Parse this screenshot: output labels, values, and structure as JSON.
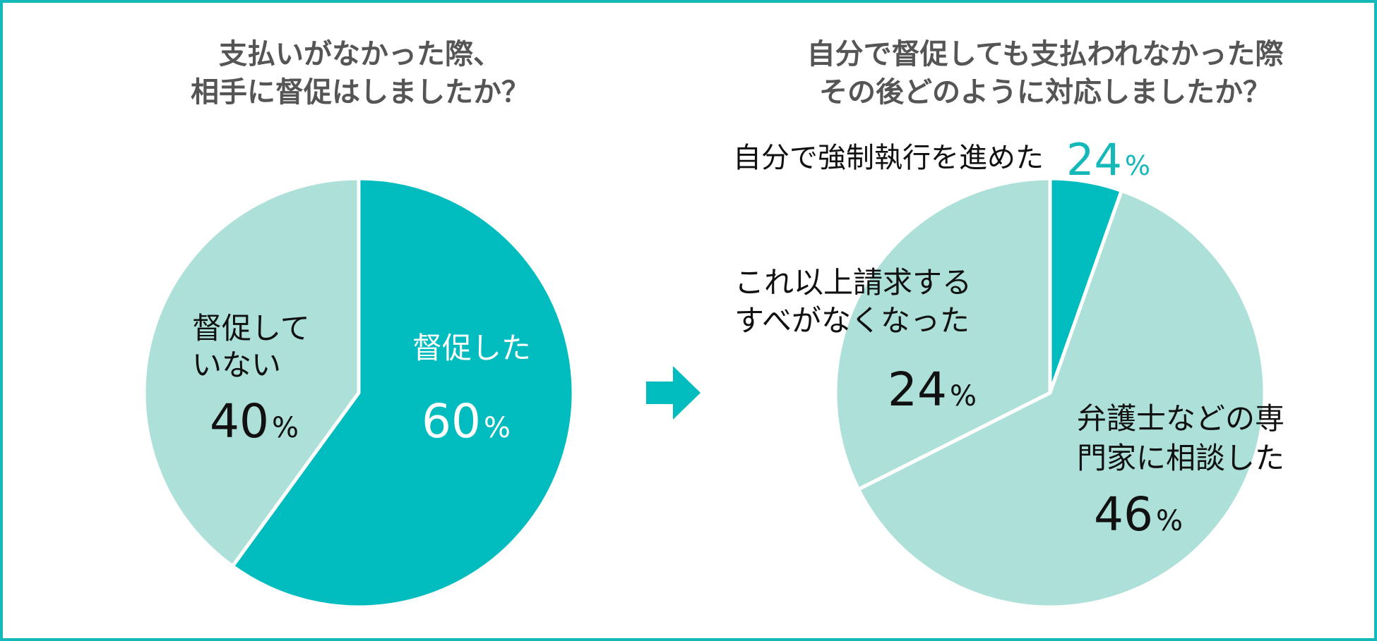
{
  "chart_data": [
    {
      "type": "pie",
      "title": [
        "支払いがなかった際、",
        "相手に督促はしましたか？"
      ],
      "slices": [
        {
          "label": [
            "督促した"
          ],
          "value": 60,
          "unit": "%",
          "color": "#00bcbf",
          "label_color": "#ffffff"
        },
        {
          "label": [
            "督促して",
            "いない"
          ],
          "value": 40,
          "unit": "%",
          "color": "#ade0d8",
          "label_color": "#111111"
        }
      ]
    },
    {
      "type": "pie",
      "title": [
        "自分で督促しても支払われなかった際",
        "その後どのように対応しましたか？"
      ],
      "slices": [
        {
          "label": [
            "自分で強制執行を進めた"
          ],
          "value": 24,
          "unit": "%",
          "color": "#00bcbf",
          "label_color": "#111111",
          "value_color": "#14b8b8",
          "slice_share": 4
        },
        {
          "label": [
            "弁護士などの専",
            "門家に相談した"
          ],
          "value": 46,
          "unit": "%",
          "color": "#ade0d8",
          "label_color": "#111111"
        },
        {
          "label": [
            "これ以上請求する",
            "すべがなくなった"
          ],
          "value": 24,
          "unit": "%",
          "color": "#ade0d8",
          "label_color": "#111111"
        }
      ]
    }
  ],
  "colors": {
    "frame": "#14b8b8",
    "accent": "#00bcbf",
    "light": "#ade0d8",
    "title": "#555555"
  },
  "arrow_icon": "right-arrow-icon"
}
